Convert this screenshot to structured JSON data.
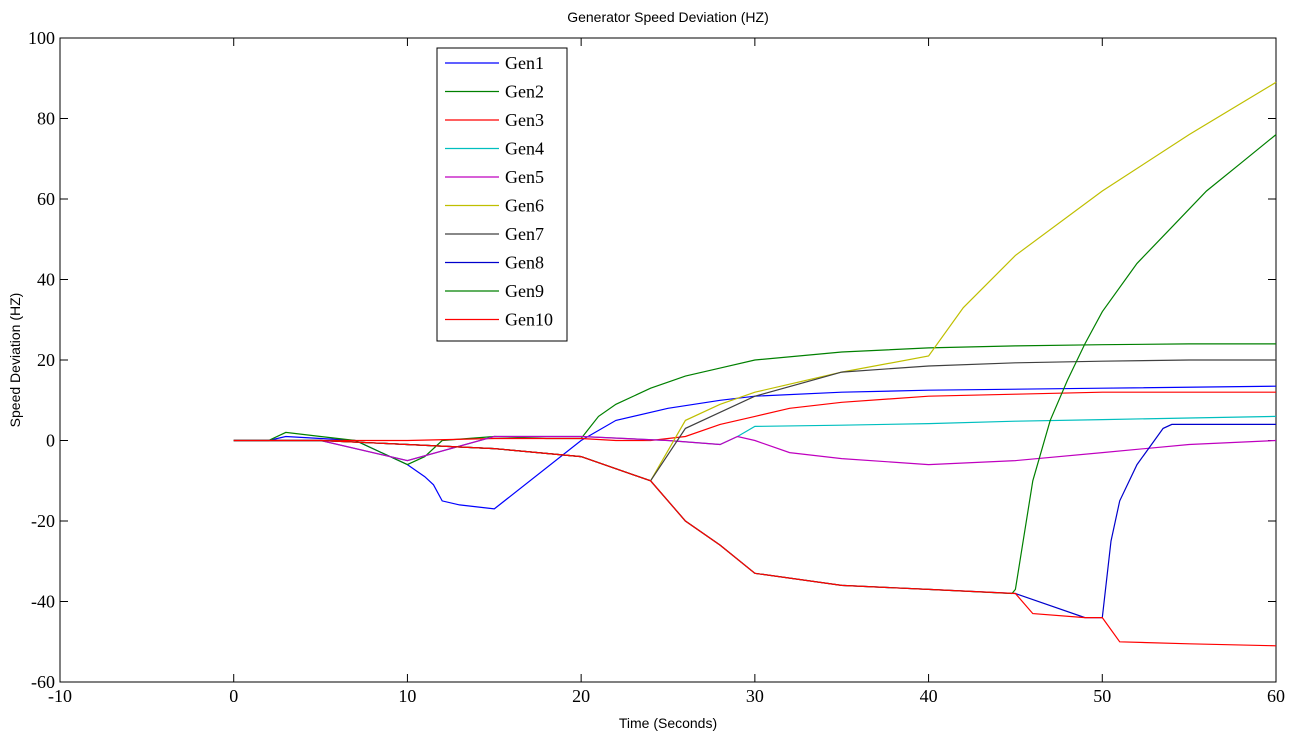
{
  "chart_data": {
    "type": "line",
    "title": "Generator Speed Deviation (HZ)",
    "xlabel": "Time (Seconds)",
    "ylabel": "Speed Deviation (HZ)",
    "xlim": [
      -10,
      60
    ],
    "ylim": [
      -60,
      100
    ],
    "xticks": [
      -10,
      0,
      10,
      20,
      30,
      40,
      50,
      60
    ],
    "yticks": [
      -60,
      -40,
      -20,
      0,
      20,
      40,
      60,
      80,
      100
    ],
    "grid": false,
    "legend_position": "top-left",
    "series": [
      {
        "name": "Gen1",
        "color": "#0000ff",
        "x": [
          0,
          2,
          3,
          5,
          7,
          10,
          11,
          11.5,
          12,
          13,
          15,
          20,
          22,
          25,
          28,
          30,
          35,
          40,
          50,
          60
        ],
        "y": [
          0,
          0,
          1,
          0.5,
          0,
          -6,
          -9,
          -11,
          -15,
          -16,
          -17,
          0,
          5,
          8,
          10,
          11,
          12,
          12.5,
          13,
          13.5
        ]
      },
      {
        "name": "Gen2",
        "color": "#008000",
        "x": [
          0,
          2,
          3,
          5,
          7,
          10,
          11,
          12,
          15,
          18,
          20,
          21,
          22,
          24,
          26,
          28,
          30,
          35,
          40,
          45,
          50,
          55,
          60
        ],
        "y": [
          0,
          0,
          2,
          1,
          0,
          -6,
          -4,
          0,
          1,
          0.5,
          0.5,
          6,
          9,
          13,
          16,
          18,
          20,
          22,
          23,
          23.5,
          23.8,
          24,
          24
        ]
      },
      {
        "name": "Gen3",
        "color": "#ff0000",
        "x": [
          0,
          5,
          10,
          15,
          20,
          22,
          24,
          26,
          28,
          30,
          32,
          35,
          40,
          45,
          50,
          55,
          60
        ],
        "y": [
          0,
          0,
          0,
          0.5,
          0.5,
          0,
          0,
          1,
          4,
          6,
          8,
          9.5,
          11,
          11.5,
          12,
          12,
          12
        ]
      },
      {
        "name": "Gen4",
        "color": "#00bfbf",
        "x": [
          0,
          5,
          10,
          15,
          20,
          25,
          28,
          29,
          30,
          35,
          40,
          45,
          50,
          55,
          60
        ],
        "y": [
          0,
          0,
          -5,
          1,
          1,
          0,
          -1,
          1,
          3.5,
          3.8,
          4.2,
          4.8,
          5.2,
          5.6,
          6
        ]
      },
      {
        "name": "Gen5",
        "color": "#bf00bf",
        "x": [
          0,
          5,
          10,
          15,
          20,
          25,
          28,
          29,
          30,
          32,
          35,
          40,
          45,
          50,
          55,
          60
        ],
        "y": [
          0,
          0,
          -5,
          1,
          1,
          0,
          -1,
          1,
          0,
          -3,
          -4.5,
          -6,
          -5,
          -3,
          -1,
          0
        ]
      },
      {
        "name": "Gen6",
        "color": "#bfbf00",
        "x": [
          0,
          5,
          10,
          15,
          20,
          24,
          26,
          28,
          30,
          35,
          40,
          42,
          45,
          50,
          55,
          60
        ],
        "y": [
          0,
          0,
          -1,
          -2,
          -4,
          -10,
          5,
          9,
          12,
          17,
          21,
          33,
          46,
          62,
          76,
          89
        ]
      },
      {
        "name": "Gen7",
        "color": "#404040",
        "x": [
          0,
          5,
          10,
          15,
          20,
          24,
          26,
          28,
          30,
          35,
          40,
          45,
          50,
          55,
          60
        ],
        "y": [
          0,
          0,
          -1,
          -2,
          -4,
          -10,
          3,
          7,
          11,
          17,
          18.5,
          19.3,
          19.7,
          20,
          20
        ]
      },
      {
        "name": "Gen8",
        "color": "#0000cc",
        "x": [
          0,
          5,
          10,
          15,
          20,
          24,
          26,
          28,
          30,
          35,
          40,
          45,
          49,
          50,
          50.5,
          51,
          52,
          53,
          53.5,
          54,
          56,
          60
        ],
        "y": [
          0,
          0,
          -1,
          -2,
          -4,
          -10,
          -20,
          -26,
          -33,
          -36,
          -37,
          -38,
          -44,
          -44,
          -25,
          -15,
          -6,
          0,
          3,
          4,
          4,
          4
        ]
      },
      {
        "name": "Gen9",
        "color": "#008000",
        "x": [
          0,
          5,
          10,
          15,
          20,
          24,
          26,
          28,
          30,
          35,
          40,
          44.8,
          45,
          46,
          47,
          48,
          49,
          50,
          52,
          54,
          56,
          58,
          60
        ],
        "y": [
          0,
          0,
          -1,
          -2,
          -4,
          -10,
          -20,
          -26,
          -33,
          -36,
          -37,
          -38,
          -37,
          -10,
          5,
          15,
          24,
          32,
          44,
          53,
          62,
          69,
          76
        ]
      },
      {
        "name": "Gen10",
        "color": "#ff0000",
        "x": [
          0,
          5,
          10,
          15,
          20,
          24,
          26,
          28,
          30,
          35,
          40,
          45,
          46,
          49,
          50,
          51,
          55,
          60
        ],
        "y": [
          0,
          0,
          -1,
          -2,
          -4,
          -10,
          -20,
          -26,
          -33,
          -36,
          -37,
          -38,
          -43,
          -44,
          -44,
          -50,
          -50.5,
          -51
        ]
      }
    ]
  }
}
